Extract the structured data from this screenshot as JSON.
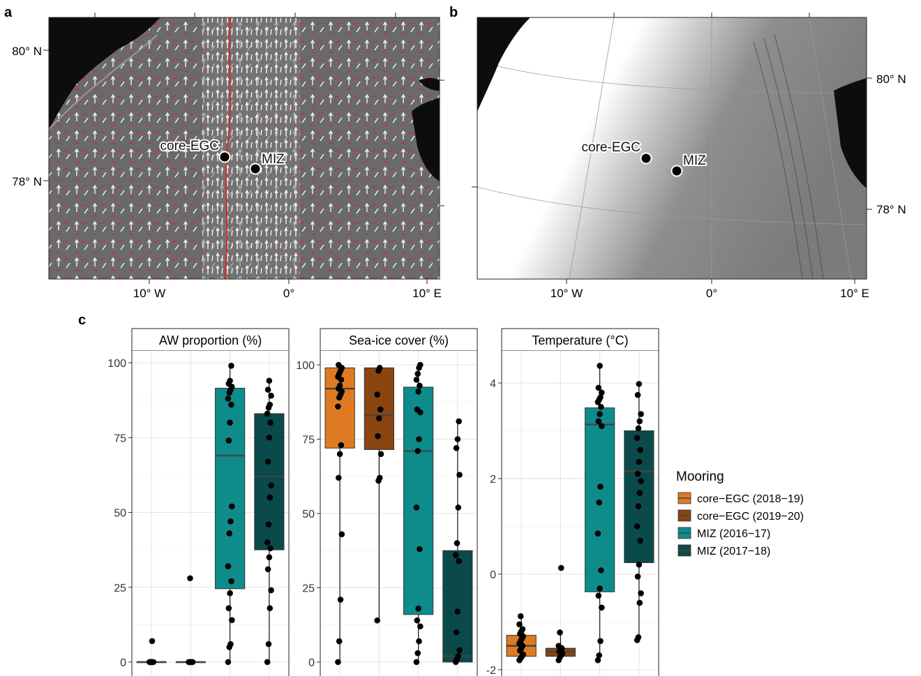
{
  "panels": {
    "a": {
      "label": "a",
      "lat_labels": [
        "80° N",
        "78° N"
      ],
      "lon_labels": [
        "10° W",
        "0°",
        "10° E"
      ],
      "stations": [
        {
          "name": "core-EGC",
          "lon": -4.6,
          "lat": 78.4
        },
        {
          "name": "MIZ",
          "lon": -2.4,
          "lat": 78.2
        }
      ]
    },
    "b": {
      "label": "b",
      "lat_labels": [
        "80° N",
        "78° N"
      ],
      "lon_labels": [
        "10° W",
        "0°",
        "10° E"
      ],
      "stations": [
        {
          "name": "core-EGC",
          "lon": -4.6,
          "lat": 78.4
        },
        {
          "name": "MIZ",
          "lon": -2.4,
          "lat": 78.2
        }
      ]
    },
    "c": {
      "label": "c"
    }
  },
  "legend": {
    "title": "Mooring",
    "items": [
      {
        "name": "core−EGC (2018−19)",
        "color": "#E07A22"
      },
      {
        "name": "core−EGC (2019−20)",
        "color": "#8B4510"
      },
      {
        "name": "MIZ (2016−17)",
        "color": "#0E8C8C"
      },
      {
        "name": "MIZ (2017−18)",
        "color": "#0A4A4A"
      }
    ]
  },
  "chart_data": [
    {
      "type": "box",
      "title": "AW proportion (%)",
      "ylim": [
        0,
        100
      ],
      "yticks": [
        0,
        25,
        50,
        75,
        100
      ],
      "boxes": [
        {
          "series": "core−EGC (2018−19)",
          "q1": 0,
          "median": 0,
          "q3": 0,
          "lower": 0,
          "upper": 0,
          "points": [
            0,
            0,
            0,
            0,
            0,
            0,
            0,
            0,
            0,
            7
          ]
        },
        {
          "series": "core−EGC (2019−20)",
          "q1": 0,
          "median": 0,
          "q3": 0,
          "lower": 0,
          "upper": 0,
          "points": [
            0,
            0,
            0,
            0,
            0,
            0,
            0,
            0,
            28
          ]
        },
        {
          "series": "MIZ (2016−17)",
          "q1": 24.5,
          "median": 69,
          "q3": 91.5,
          "lower": 0,
          "upper": 99,
          "points": [
            0,
            5,
            6,
            14,
            18,
            23,
            27,
            32,
            43,
            47,
            52,
            74,
            80,
            86,
            88,
            90,
            91,
            92,
            93,
            94,
            99
          ]
        },
        {
          "series": "MIZ (2017−18)",
          "q1": 37.5,
          "median": 62,
          "q3": 83,
          "lower": 0,
          "upper": 94,
          "points": [
            0,
            6,
            18,
            24,
            31,
            35,
            38,
            40,
            46,
            55,
            59,
            67,
            75,
            80,
            83,
            85,
            86,
            89,
            91,
            94
          ]
        }
      ]
    },
    {
      "type": "box",
      "title": "Sea-ice cover (%)",
      "ylim": [
        0,
        100
      ],
      "yticks": [
        0,
        25,
        50,
        75,
        100
      ],
      "boxes": [
        {
          "series": "core−EGC (2018−19)",
          "q1": 72,
          "median": 92,
          "q3": 99,
          "lower": 0,
          "upper": 100,
          "points": [
            0,
            7,
            21,
            43,
            62,
            70,
            73,
            86,
            89,
            90,
            91,
            92,
            93,
            95,
            96,
            97,
            98,
            99,
            100
          ]
        },
        {
          "series": "core−EGC (2019−20)",
          "q1": 71.5,
          "median": 83,
          "q3": 99,
          "lower": 14,
          "upper": 99,
          "points": [
            14,
            61,
            62,
            70,
            76,
            82,
            85,
            90,
            98,
            99
          ]
        },
        {
          "series": "MIZ (2016−17)",
          "q1": 16,
          "median": 71,
          "q3": 92.5,
          "lower": 0,
          "upper": 100,
          "points": [
            0,
            3,
            7,
            12,
            14,
            18,
            38,
            52,
            71,
            75,
            84,
            85,
            91,
            93,
            95,
            97,
            99,
            100
          ]
        },
        {
          "series": "MIZ (2017−18)",
          "q1": 0,
          "median": 2,
          "q3": 37.5,
          "lower": 0,
          "upper": 81,
          "points": [
            0,
            1,
            2,
            4,
            10,
            17,
            34,
            36,
            40,
            52,
            63,
            72,
            75,
            81
          ]
        }
      ]
    },
    {
      "type": "box",
      "title": "Temperature (°C)",
      "ylim": [
        -2,
        4.5
      ],
      "yticks": [
        -2,
        0,
        2,
        4
      ],
      "boxes": [
        {
          "series": "core−EGC (2018−19)",
          "q1": -1.72,
          "median": -1.5,
          "q3": -1.28,
          "lower": -1.8,
          "upper": -0.88,
          "points": [
            -1.8,
            -1.76,
            -1.72,
            -1.68,
            -1.6,
            -1.55,
            -1.5,
            -1.45,
            -1.4,
            -1.35,
            -1.3,
            -1.25,
            -1.2,
            -1.15,
            -1.05,
            -0.88
          ]
        },
        {
          "series": "core−EGC (2019−20)",
          "q1": -1.72,
          "median": -1.62,
          "q3": -1.55,
          "lower": -1.8,
          "upper": -1.22,
          "points": [
            -1.8,
            -1.74,
            -1.7,
            -1.66,
            -1.62,
            -1.58,
            -1.55,
            -1.5,
            -1.22,
            0.13
          ]
        },
        {
          "series": "MIZ (2016−17)",
          "q1": -0.37,
          "median": 3.13,
          "q3": 3.48,
          "lower": -1.8,
          "upper": 4.36,
          "points": [
            -1.8,
            -1.7,
            -1.4,
            -0.7,
            -0.45,
            -0.3,
            0.08,
            0.85,
            1.5,
            1.83,
            3.1,
            3.2,
            3.35,
            3.5,
            3.6,
            3.65,
            3.7,
            3.8,
            3.9,
            4.36
          ]
        },
        {
          "series": "MIZ (2017−18)",
          "q1": 0.24,
          "median": 2.15,
          "q3": 3.0,
          "lower": -1.38,
          "upper": 3.98,
          "points": [
            -1.38,
            -1.32,
            -0.6,
            -0.4,
            -0.05,
            0.2,
            0.7,
            1.0,
            1.42,
            1.7,
            1.95,
            2.1,
            2.35,
            2.6,
            2.85,
            3.05,
            3.2,
            3.35,
            3.75,
            3.98
          ]
        }
      ]
    }
  ]
}
